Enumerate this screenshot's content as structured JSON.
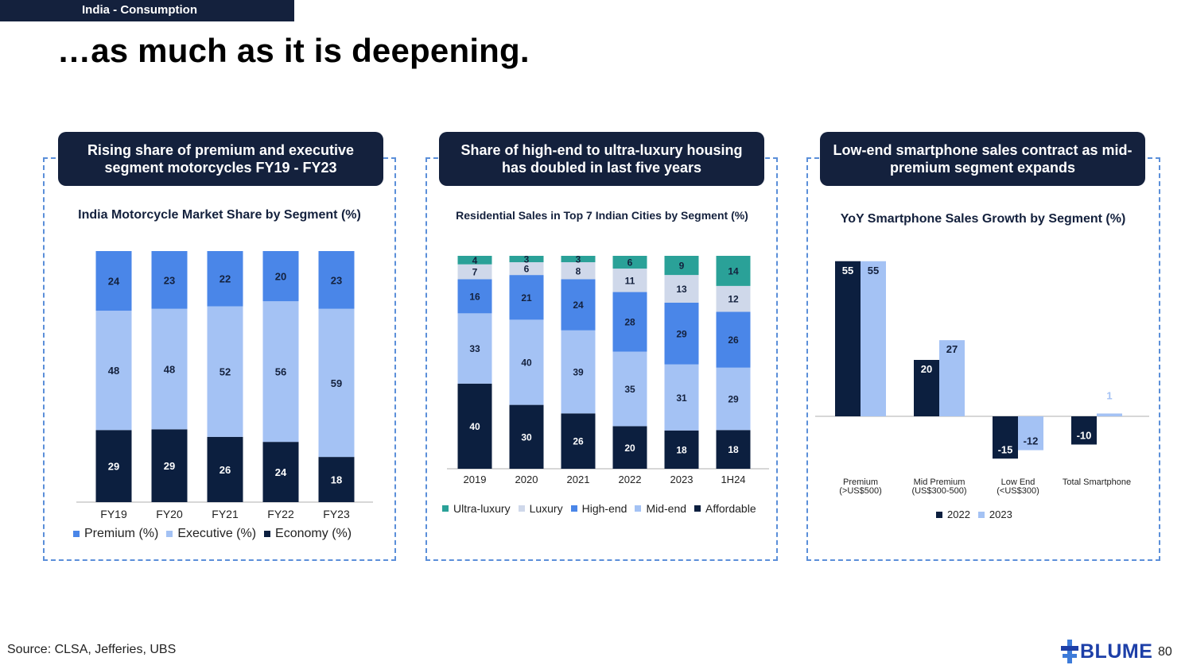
{
  "header": {
    "section": "India - Consumption",
    "title": "…as much as it is deepening."
  },
  "panels": [
    {
      "pill": "Rising share of premium and executive segment motorcycles FY19 - FY23",
      "subtitle": "India Motorcycle Market Share by Segment (%)"
    },
    {
      "pill": "Share of high-end to ultra-luxury housing has doubled in last five years",
      "subtitle": "Residential Sales in Top 7 Indian Cities by Segment (%)"
    },
    {
      "pill": "Low-end smartphone sales contract as mid-premium segment expands",
      "subtitle": "YoY Smartphone Sales Growth by Segment  (%)"
    }
  ],
  "chart_data": [
    {
      "type": "bar",
      "stacked": true,
      "title": "India Motorcycle Market Share by Segment (%)",
      "categories": [
        "FY19",
        "FY20",
        "FY21",
        "FY22",
        "FY23"
      ],
      "series": [
        {
          "name": "Economy (%)",
          "color": "#0c1f3f",
          "values": [
            29,
            29,
            26,
            24,
            18
          ]
        },
        {
          "name": "Executive (%)",
          "color": "#a4c2f4",
          "values": [
            48,
            48,
            52,
            56,
            59
          ]
        },
        {
          "name": "Premium (%)",
          "color": "#4a86e8",
          "values": [
            24,
            23,
            22,
            20,
            23
          ]
        }
      ],
      "legend": [
        "Premium (%)",
        "Executive (%)",
        "Economy (%)"
      ]
    },
    {
      "type": "bar",
      "stacked": true,
      "title": "Residential Sales in Top 7 Indian Cities by Segment (%)",
      "categories": [
        "2019",
        "2020",
        "2021",
        "2022",
        "2023",
        "1H24"
      ],
      "series": [
        {
          "name": "Affordable",
          "color": "#0c1f3f",
          "values": [
            40,
            30,
            26,
            20,
            18,
            18
          ]
        },
        {
          "name": "Mid-end",
          "color": "#a4c2f4",
          "values": [
            33,
            40,
            39,
            35,
            31,
            29
          ]
        },
        {
          "name": "High-end",
          "color": "#4a86e8",
          "values": [
            16,
            21,
            24,
            28,
            29,
            26
          ]
        },
        {
          "name": "Luxury",
          "color": "#cfd8ea",
          "values": [
            7,
            6,
            8,
            11,
            13,
            12
          ]
        },
        {
          "name": "Ultra-luxury",
          "color": "#2aa198",
          "values": [
            4,
            3,
            3,
            6,
            9,
            14
          ]
        }
      ],
      "legend": [
        "Ultra-luxury",
        "Luxury",
        "High-end",
        "Mid-end",
        "Affordable"
      ]
    },
    {
      "type": "bar",
      "title": "YoY Smartphone Sales Growth by Segment  (%)",
      "categories": [
        [
          "Premium",
          "(>US$500)"
        ],
        [
          "Mid Premium",
          "(US$300-500)"
        ],
        [
          "Low End",
          "(<US$300)"
        ],
        [
          "Total Smartphone"
        ]
      ],
      "series": [
        {
          "name": "2022",
          "color": "#0c1f3f",
          "values": [
            55,
            20,
            -15,
            -10
          ]
        },
        {
          "name": "2023",
          "color": "#a4c2f4",
          "values": [
            55,
            27,
            -12,
            1
          ]
        }
      ],
      "legend": [
        "2022",
        "2023"
      ]
    }
  ],
  "footer": {
    "source": "Source: CLSA, Jefferies, UBS",
    "logo": "BLUME",
    "page": "80"
  }
}
